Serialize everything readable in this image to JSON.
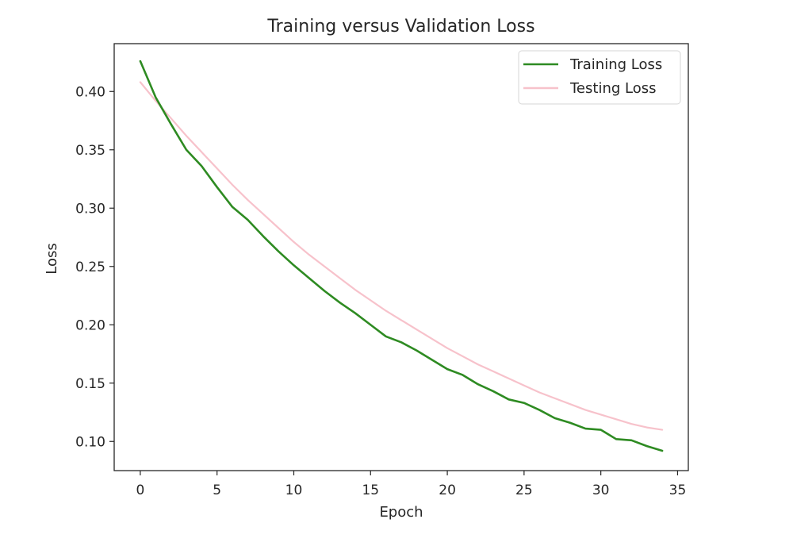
{
  "chart_data": {
    "type": "line",
    "title": "Training versus Validation Loss",
    "xlabel": "Epoch",
    "ylabel": "Loss",
    "xlim": [
      -1.7,
      35.7
    ],
    "ylim": [
      0.075,
      0.441
    ],
    "xticks": [
      0,
      5,
      10,
      15,
      20,
      25,
      30,
      35
    ],
    "xtick_labels": [
      "0",
      "5",
      "10",
      "15",
      "20",
      "25",
      "30",
      "35"
    ],
    "yticks": [
      0.1,
      0.15,
      0.2,
      0.25,
      0.3,
      0.35,
      0.4
    ],
    "ytick_labels": [
      "0.10",
      "0.15",
      "0.20",
      "0.25",
      "0.30",
      "0.35",
      "0.40"
    ],
    "grid": false,
    "legend_position": "top-right",
    "x": [
      0,
      1,
      2,
      3,
      4,
      5,
      6,
      7,
      8,
      9,
      10,
      11,
      12,
      13,
      14,
      15,
      16,
      17,
      18,
      19,
      20,
      21,
      22,
      23,
      24,
      25,
      26,
      27,
      28,
      29,
      30,
      31,
      32,
      33,
      34
    ],
    "series": [
      {
        "name": "Training Loss",
        "color": "#2e8b22",
        "values": [
          0.426,
          0.395,
          0.372,
          0.35,
          0.336,
          0.318,
          0.301,
          0.29,
          0.276,
          0.263,
          0.251,
          0.24,
          0.229,
          0.219,
          0.21,
          0.2,
          0.19,
          0.185,
          0.178,
          0.17,
          0.162,
          0.157,
          0.149,
          0.143,
          0.136,
          0.133,
          0.127,
          0.12,
          0.116,
          0.111,
          0.11,
          0.102,
          0.101,
          0.096,
          0.092
        ]
      },
      {
        "name": "Testing Loss",
        "color": "#f7c2cb",
        "values": [
          0.408,
          0.392,
          0.377,
          0.362,
          0.348,
          0.334,
          0.32,
          0.307,
          0.295,
          0.283,
          0.271,
          0.26,
          0.25,
          0.24,
          0.23,
          0.221,
          0.212,
          0.204,
          0.196,
          0.188,
          0.18,
          0.173,
          0.166,
          0.16,
          0.154,
          0.148,
          0.142,
          0.137,
          0.132,
          0.127,
          0.123,
          0.119,
          0.115,
          0.112,
          0.11
        ]
      }
    ]
  }
}
